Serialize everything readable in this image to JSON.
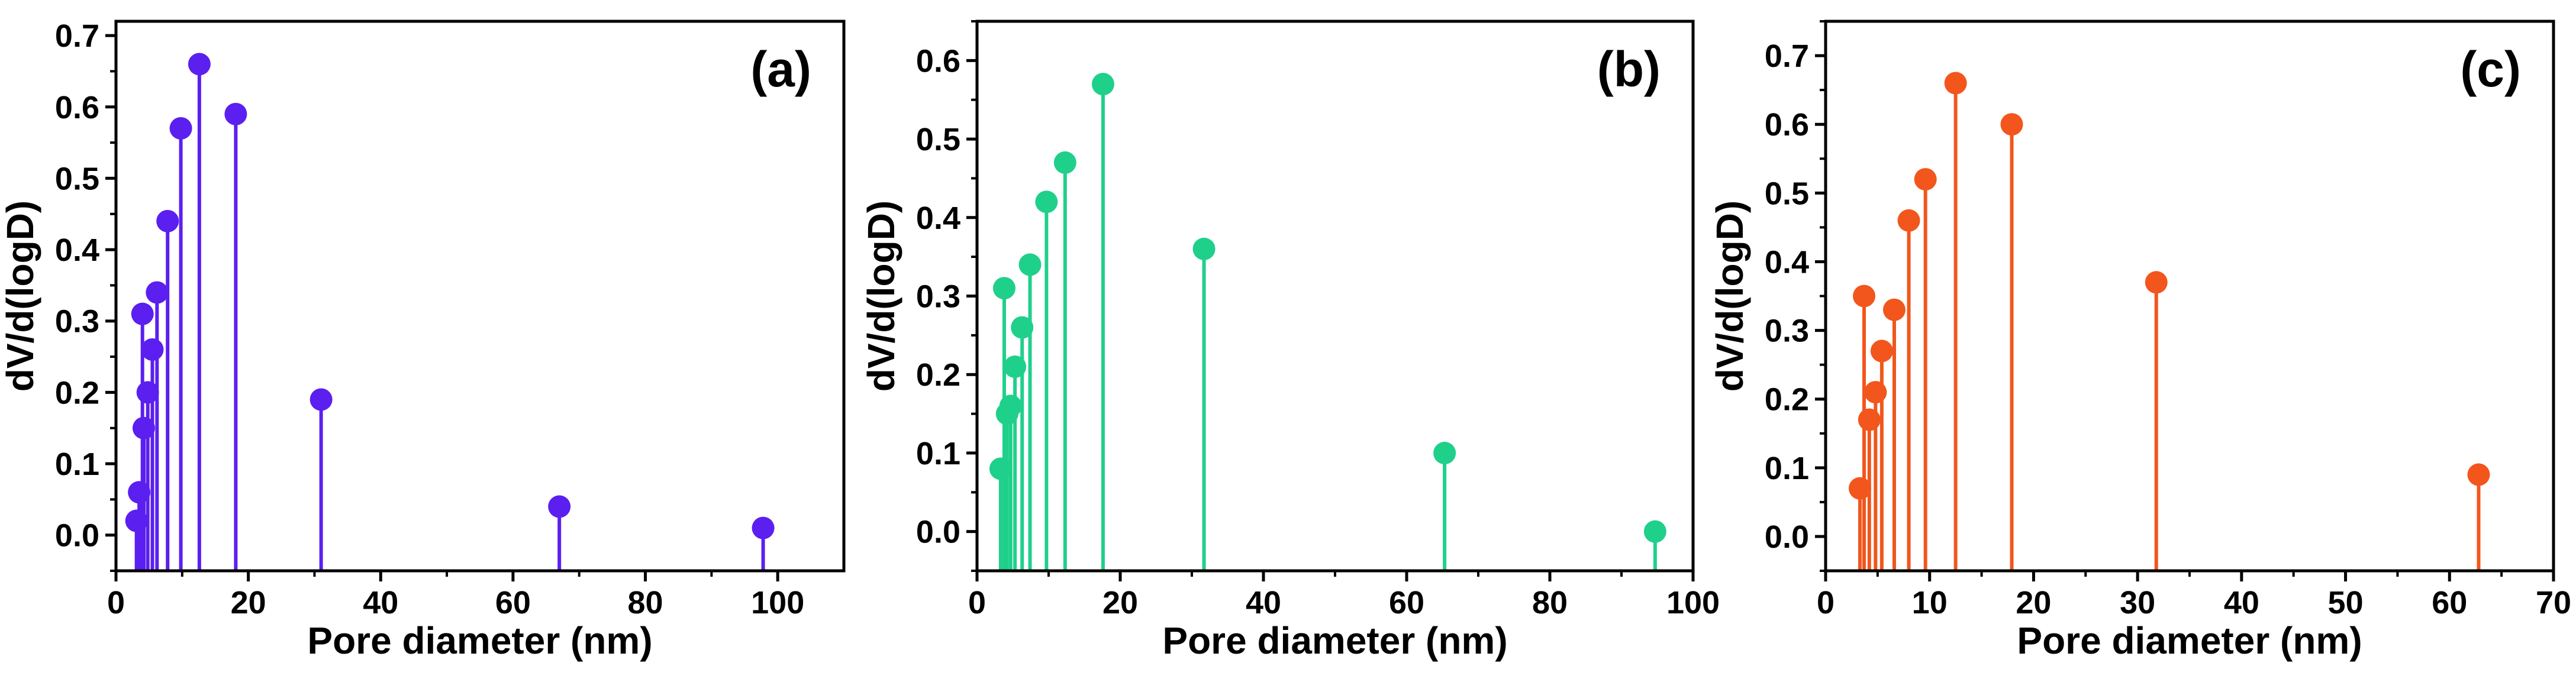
{
  "chart_data": [
    {
      "type": "stem",
      "panel_label": "(a)",
      "xlabel": "Pore diameter (nm)",
      "ylabel": "dV/d(logD)",
      "xlim": [
        0,
        110
      ],
      "ylim": [
        -0.05,
        0.72
      ],
      "xticks": [
        0,
        20,
        40,
        60,
        80,
        100
      ],
      "yticks": [
        0.0,
        0.1,
        0.2,
        0.3,
        0.4,
        0.5,
        0.6,
        0.7
      ],
      "color": "#5b1ff0",
      "series": [
        {
          "x": [
            3.1,
            3.5,
            4.0,
            4.2,
            4.8,
            5.5,
            6.2,
            7.8,
            9.8,
            12.6,
            18.1,
            31.0,
            67.0,
            97.8
          ],
          "y": [
            0.02,
            0.06,
            0.31,
            0.15,
            0.2,
            0.26,
            0.34,
            0.44,
            0.57,
            0.66,
            0.59,
            0.19,
            0.04,
            0.01
          ]
        }
      ]
    },
    {
      "type": "stem",
      "panel_label": "(b)",
      "xlabel": "Pore diameter (nm)",
      "ylabel": "dV/d(logD)",
      "xlim": [
        0,
        100
      ],
      "ylim": [
        -0.05,
        0.65
      ],
      "xticks": [
        0,
        20,
        40,
        60,
        80,
        100
      ],
      "yticks": [
        0.0,
        0.1,
        0.2,
        0.3,
        0.4,
        0.5,
        0.6
      ],
      "color": "#1fd08b",
      "series": [
        {
          "x": [
            3.3,
            3.8,
            4.2,
            4.7,
            5.3,
            6.3,
            7.4,
            9.7,
            12.3,
            17.6,
            31.7,
            65.3,
            94.7
          ],
          "y": [
            0.08,
            0.31,
            0.15,
            0.16,
            0.21,
            0.26,
            0.34,
            0.42,
            0.47,
            0.57,
            0.36,
            0.1,
            0.0
          ]
        }
      ]
    },
    {
      "type": "stem",
      "panel_label": "(c)",
      "xlabel": "Pore diameter (nm)",
      "ylabel": "dV/d(logD)",
      "xlim": [
        0,
        70
      ],
      "ylim": [
        -0.05,
        0.75
      ],
      "xticks": [
        0,
        10,
        20,
        30,
        40,
        50,
        60,
        70
      ],
      "yticks": [
        0.0,
        0.1,
        0.2,
        0.3,
        0.4,
        0.5,
        0.6,
        0.7
      ],
      "color": "#f2561d",
      "series": [
        {
          "x": [
            3.3,
            3.7,
            4.2,
            4.8,
            5.4,
            6.6,
            8.0,
            9.6,
            12.5,
            17.9,
            31.8,
            62.8
          ],
          "y": [
            0.07,
            0.35,
            0.17,
            0.21,
            0.27,
            0.33,
            0.46,
            0.52,
            0.66,
            0.6,
            0.37,
            0.09
          ]
        }
      ]
    }
  ]
}
